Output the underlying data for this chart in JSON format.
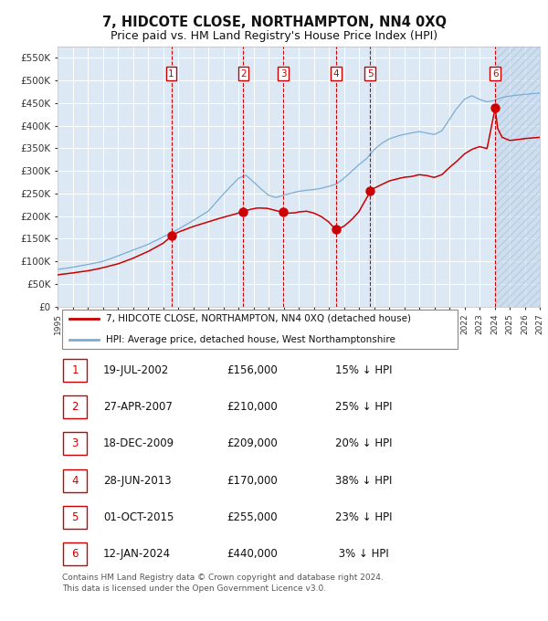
{
  "title": "7, HIDCOTE CLOSE, NORTHAMPTON, NN4 0XQ",
  "subtitle": "Price paid vs. HM Land Registry's House Price Index (HPI)",
  "title_fontsize": 10.5,
  "subtitle_fontsize": 9,
  "bg_color": "#dce9f5",
  "grid_color": "#ffffff",
  "red_line_color": "#cc0000",
  "blue_line_color": "#7aadd4",
  "sale_dates_x": [
    2002.55,
    2007.33,
    2009.97,
    2013.49,
    2015.75,
    2024.04
  ],
  "sale_prices_y": [
    156000,
    210000,
    209000,
    170000,
    255000,
    440000
  ],
  "sale_labels": [
    "1",
    "2",
    "3",
    "4",
    "5",
    "6"
  ],
  "table_rows": [
    [
      "1",
      "19-JUL-2002",
      "£156,000",
      "15% ↓ HPI"
    ],
    [
      "2",
      "27-APR-2007",
      "£210,000",
      "25% ↓ HPI"
    ],
    [
      "3",
      "18-DEC-2009",
      "£209,000",
      "20% ↓ HPI"
    ],
    [
      "4",
      "28-JUN-2013",
      "£170,000",
      "38% ↓ HPI"
    ],
    [
      "5",
      "01-OCT-2015",
      "£255,000",
      "23% ↓ HPI"
    ],
    [
      "6",
      "12-JAN-2024",
      "£440,000",
      " 3% ↓ HPI"
    ]
  ],
  "legend_line1": "7, HIDCOTE CLOSE, NORTHAMPTON, NN4 0XQ (detached house)",
  "legend_line2": "HPI: Average price, detached house, West Northamptonshire",
  "footer": "Contains HM Land Registry data © Crown copyright and database right 2024.\nThis data is licensed under the Open Government Licence v3.0.",
  "ylim": [
    0,
    575000
  ],
  "yticks": [
    0,
    50000,
    100000,
    150000,
    200000,
    250000,
    300000,
    350000,
    400000,
    450000,
    500000,
    550000
  ],
  "xmin": 1995,
  "xmax": 2027,
  "xticks": [
    1995,
    1996,
    1997,
    1998,
    1999,
    2000,
    2001,
    2002,
    2003,
    2004,
    2005,
    2006,
    2007,
    2008,
    2009,
    2010,
    2011,
    2012,
    2013,
    2014,
    2015,
    2016,
    2017,
    2018,
    2019,
    2020,
    2021,
    2022,
    2023,
    2024,
    2025,
    2026,
    2027
  ]
}
